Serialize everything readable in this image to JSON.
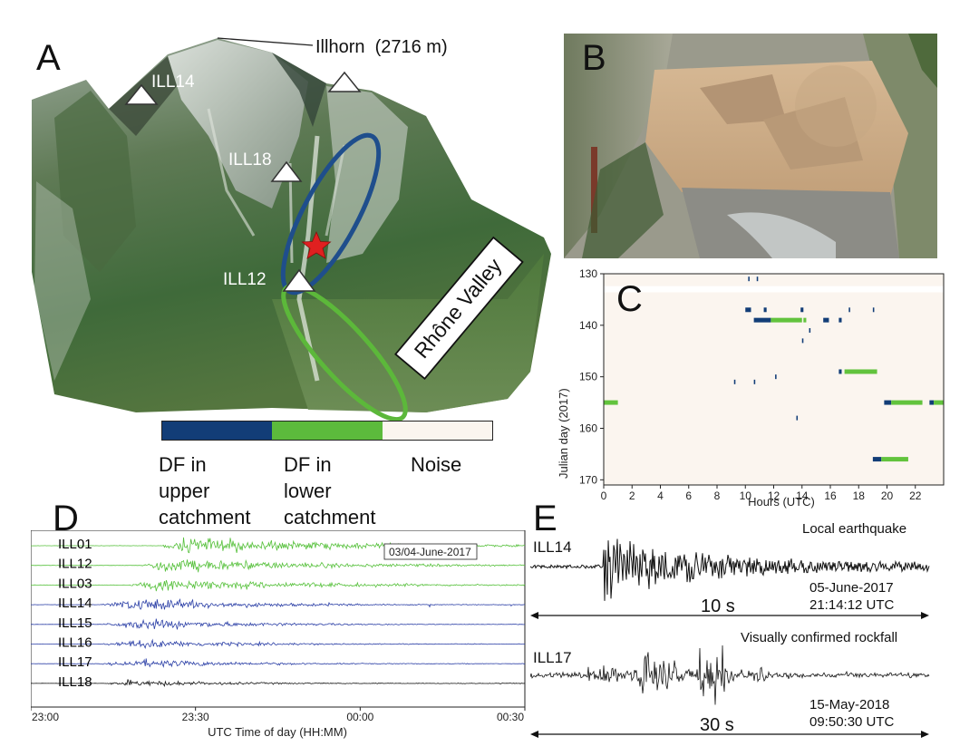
{
  "panels": {
    "a": "A",
    "b": "B",
    "c": "C",
    "d": "D",
    "e": "E"
  },
  "panel_a": {
    "peak_label": "Illhorn  (2716 m)",
    "stations": [
      "ILL14",
      "ILL18",
      "ILL12"
    ],
    "valley_label": "Rhône Valley",
    "colors": {
      "upper": "#1f4e8c",
      "lower": "#5cb83a",
      "star": "#e02020"
    }
  },
  "legend": {
    "entries": [
      {
        "label_lines": [
          "DF in",
          "upper",
          "catchment"
        ],
        "color": "#123d77"
      },
      {
        "label_lines": [
          "DF in",
          "lower",
          "catchment"
        ],
        "color": "#5cba3c"
      },
      {
        "label_lines": [
          "Noise"
        ],
        "color": "#fbf5ef"
      }
    ]
  },
  "chart_data": [
    {
      "panel": "C",
      "type": "heatmap",
      "xlabel": "Hours (UTC)",
      "ylabel": "Julian day (2017)",
      "xlim": [
        0,
        24
      ],
      "ylim": [
        130,
        171
      ],
      "x_ticks": [
        0,
        2,
        4,
        6,
        8,
        10,
        12,
        14,
        16,
        18,
        20,
        22
      ],
      "y_ticks": [
        130,
        140,
        150,
        160,
        170
      ],
      "classes": [
        "DF in upper catchment",
        "DF in lower catchment",
        "Noise"
      ],
      "segments": [
        {
          "day": 131,
          "start": 10.2,
          "end": 10.3,
          "class": "upper"
        },
        {
          "day": 131,
          "start": 10.8,
          "end": 10.9,
          "class": "upper"
        },
        {
          "day": 137,
          "start": 10.0,
          "end": 10.4,
          "class": "upper"
        },
        {
          "day": 137,
          "start": 11.3,
          "end": 11.5,
          "class": "upper"
        },
        {
          "day": 137,
          "start": 13.9,
          "end": 14.1,
          "class": "upper"
        },
        {
          "day": 137,
          "start": 17.3,
          "end": 17.4,
          "class": "upper"
        },
        {
          "day": 137,
          "start": 19.0,
          "end": 19.1,
          "class": "upper"
        },
        {
          "day": 139,
          "start": 10.6,
          "end": 11.8,
          "class": "upper"
        },
        {
          "day": 139,
          "start": 11.8,
          "end": 14.0,
          "class": "lower"
        },
        {
          "day": 139,
          "start": 14.1,
          "end": 14.3,
          "class": "lower"
        },
        {
          "day": 139,
          "start": 15.5,
          "end": 15.9,
          "class": "upper"
        },
        {
          "day": 139,
          "start": 16.6,
          "end": 16.8,
          "class": "upper"
        },
        {
          "day": 141,
          "start": 14.5,
          "end": 14.6,
          "class": "upper"
        },
        {
          "day": 143,
          "start": 14.0,
          "end": 14.1,
          "class": "upper"
        },
        {
          "day": 149,
          "start": 16.6,
          "end": 16.8,
          "class": "upper"
        },
        {
          "day": 149,
          "start": 17.0,
          "end": 19.3,
          "class": "lower"
        },
        {
          "day": 150,
          "start": 12.1,
          "end": 12.2,
          "class": "upper"
        },
        {
          "day": 151,
          "start": 9.2,
          "end": 9.3,
          "class": "upper"
        },
        {
          "day": 151,
          "start": 10.6,
          "end": 10.7,
          "class": "upper"
        },
        {
          "day": 155,
          "start": 0.0,
          "end": 1.0,
          "class": "lower"
        },
        {
          "day": 155,
          "start": 19.8,
          "end": 20.3,
          "class": "upper"
        },
        {
          "day": 155,
          "start": 20.3,
          "end": 22.5,
          "class": "lower"
        },
        {
          "day": 155,
          "start": 23.0,
          "end": 23.3,
          "class": "upper"
        },
        {
          "day": 155,
          "start": 23.3,
          "end": 24.0,
          "class": "lower"
        },
        {
          "day": 158,
          "start": 13.6,
          "end": 13.7,
          "class": "upper"
        },
        {
          "day": 166,
          "start": 19.0,
          "end": 19.6,
          "class": "upper"
        },
        {
          "day": 166,
          "start": 19.6,
          "end": 21.5,
          "class": "lower"
        }
      ]
    },
    {
      "panel": "D",
      "type": "line",
      "xlabel": "UTC Time of day (HH:MM)",
      "x_ticks": [
        "23:00",
        "23:30",
        "00:00",
        "00:30"
      ],
      "annotation": "03/04-June-2017",
      "series": [
        {
          "name": "ILL01",
          "class": "lower",
          "onset": 0.26,
          "peak": 0.32,
          "amp": 15
        },
        {
          "name": "ILL12",
          "class": "lower",
          "onset": 0.22,
          "peak": 0.27,
          "amp": 13
        },
        {
          "name": "ILL03",
          "class": "lower",
          "onset": 0.2,
          "peak": 0.25,
          "amp": 12
        },
        {
          "name": "ILL14",
          "class": "upper",
          "onset": 0.14,
          "peak": 0.22,
          "amp": 12
        },
        {
          "name": "ILL15",
          "class": "upper",
          "onset": 0.14,
          "peak": 0.22,
          "amp": 10
        },
        {
          "name": "ILL16",
          "class": "upper",
          "onset": 0.14,
          "peak": 0.22,
          "amp": 8
        },
        {
          "name": "ILL17",
          "class": "upper",
          "onset": 0.14,
          "peak": 0.22,
          "amp": 8
        },
        {
          "name": "ILL18",
          "class": "black",
          "onset": 0.15,
          "peak": 0.2,
          "amp": 6
        }
      ]
    },
    {
      "panel": "E",
      "type": "line",
      "traces": [
        {
          "station": "ILL14",
          "event": "Local earthquake",
          "date": "05-June-2017",
          "time": "21:14:12 UTC",
          "duration": "10 s"
        },
        {
          "station": "ILL17",
          "event": "Visually confirmed rockfall",
          "date": "15-May-2018",
          "time": "09:50:30 UTC",
          "duration": "30 s"
        }
      ]
    }
  ],
  "colors": {
    "upper": "#123d77",
    "lower": "#62c33d",
    "noise": "#fbf5ef",
    "wave_blue": "#2b3fa6",
    "wave_green": "#55c03a",
    "wave_black": "#111111"
  }
}
